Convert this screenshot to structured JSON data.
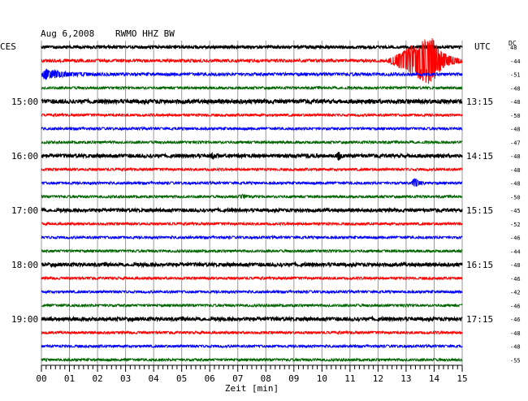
{
  "header": {
    "date": "Aug 6,2008",
    "station": "RWMO HHZ BW",
    "left_zone": "CES",
    "right_zone": "UTC",
    "dc_label": "DC"
  },
  "chart_data": {
    "type": "line",
    "title": "Aug 6,2008   RWMO HHZ BW",
    "xlabel": "Zeit [min]",
    "ylabel": "",
    "x_ticks": [
      "00",
      "01",
      "02",
      "03",
      "04",
      "05",
      "06",
      "07",
      "08",
      "09",
      "10",
      "11",
      "12",
      "13",
      "14",
      "15"
    ],
    "xlim": [
      0,
      15
    ],
    "grid": true,
    "legend": "none",
    "trace_colors": [
      "#000000",
      "#ff0000",
      "#0000ff",
      "#006400"
    ],
    "left_time_labels": [
      {
        "row": 4,
        "label": "15:00"
      },
      {
        "row": 8,
        "label": "16:00"
      },
      {
        "row": 12,
        "label": "17:00"
      },
      {
        "row": 16,
        "label": "18:00"
      },
      {
        "row": 20,
        "label": "19:00"
      }
    ],
    "right_time_labels": [
      {
        "row": 4,
        "label": "13:15"
      },
      {
        "row": 8,
        "label": "14:15"
      },
      {
        "row": 12,
        "label": "15:15"
      },
      {
        "row": 16,
        "label": "16:15"
      },
      {
        "row": 20,
        "label": "17:15"
      }
    ],
    "dc_offsets": [
      "48",
      "-44",
      "-51",
      "-48",
      "-48",
      "-50",
      "-48",
      "-47",
      "-48",
      "-48",
      "-48",
      "-50",
      "-45",
      "-52",
      "-46",
      "-44",
      "-48",
      "-46",
      "-42",
      "-46",
      "-46",
      "-48",
      "-48",
      "-55"
    ],
    "traces": [
      {
        "row": 0,
        "noise": 1.0,
        "events": []
      },
      {
        "row": 1,
        "noise": 1.2,
        "events": [
          {
            "start": 12.3,
            "peak": 13.9,
            "end": 15.0,
            "amplitude": 30
          }
        ]
      },
      {
        "row": 2,
        "noise": 1.2,
        "events": [
          {
            "start": 0.0,
            "peak": 0.15,
            "end": 2.0,
            "amplitude": 6
          }
        ]
      },
      {
        "row": 3,
        "noise": 1.0,
        "events": []
      },
      {
        "row": 4,
        "noise": 1.5,
        "events": []
      },
      {
        "row": 5,
        "noise": 1.0,
        "events": []
      },
      {
        "row": 6,
        "noise": 1.0,
        "events": []
      },
      {
        "row": 7,
        "noise": 1.0,
        "events": []
      },
      {
        "row": 8,
        "noise": 1.3,
        "events": [
          {
            "start": 10.5,
            "peak": 10.6,
            "end": 10.8,
            "amplitude": 5
          },
          {
            "start": 6.0,
            "peak": 6.1,
            "end": 6.3,
            "amplitude": 3
          }
        ]
      },
      {
        "row": 9,
        "noise": 1.0,
        "events": []
      },
      {
        "row": 10,
        "noise": 1.0,
        "events": [
          {
            "start": 13.2,
            "peak": 13.3,
            "end": 13.7,
            "amplitude": 7
          }
        ]
      },
      {
        "row": 11,
        "noise": 1.0,
        "events": [
          {
            "start": 7.0,
            "peak": 7.2,
            "end": 7.6,
            "amplitude": 2
          }
        ]
      },
      {
        "row": 12,
        "noise": 1.2,
        "events": []
      },
      {
        "row": 13,
        "noise": 1.0,
        "events": []
      },
      {
        "row": 14,
        "noise": 1.0,
        "events": []
      },
      {
        "row": 15,
        "noise": 1.0,
        "events": []
      },
      {
        "row": 16,
        "noise": 1.3,
        "events": []
      },
      {
        "row": 17,
        "noise": 1.0,
        "events": []
      },
      {
        "row": 18,
        "noise": 1.0,
        "events": []
      },
      {
        "row": 19,
        "noise": 1.0,
        "events": []
      },
      {
        "row": 20,
        "noise": 1.3,
        "events": []
      },
      {
        "row": 21,
        "noise": 1.0,
        "events": []
      },
      {
        "row": 22,
        "noise": 1.0,
        "events": []
      },
      {
        "row": 23,
        "noise": 1.0,
        "events": []
      }
    ]
  }
}
